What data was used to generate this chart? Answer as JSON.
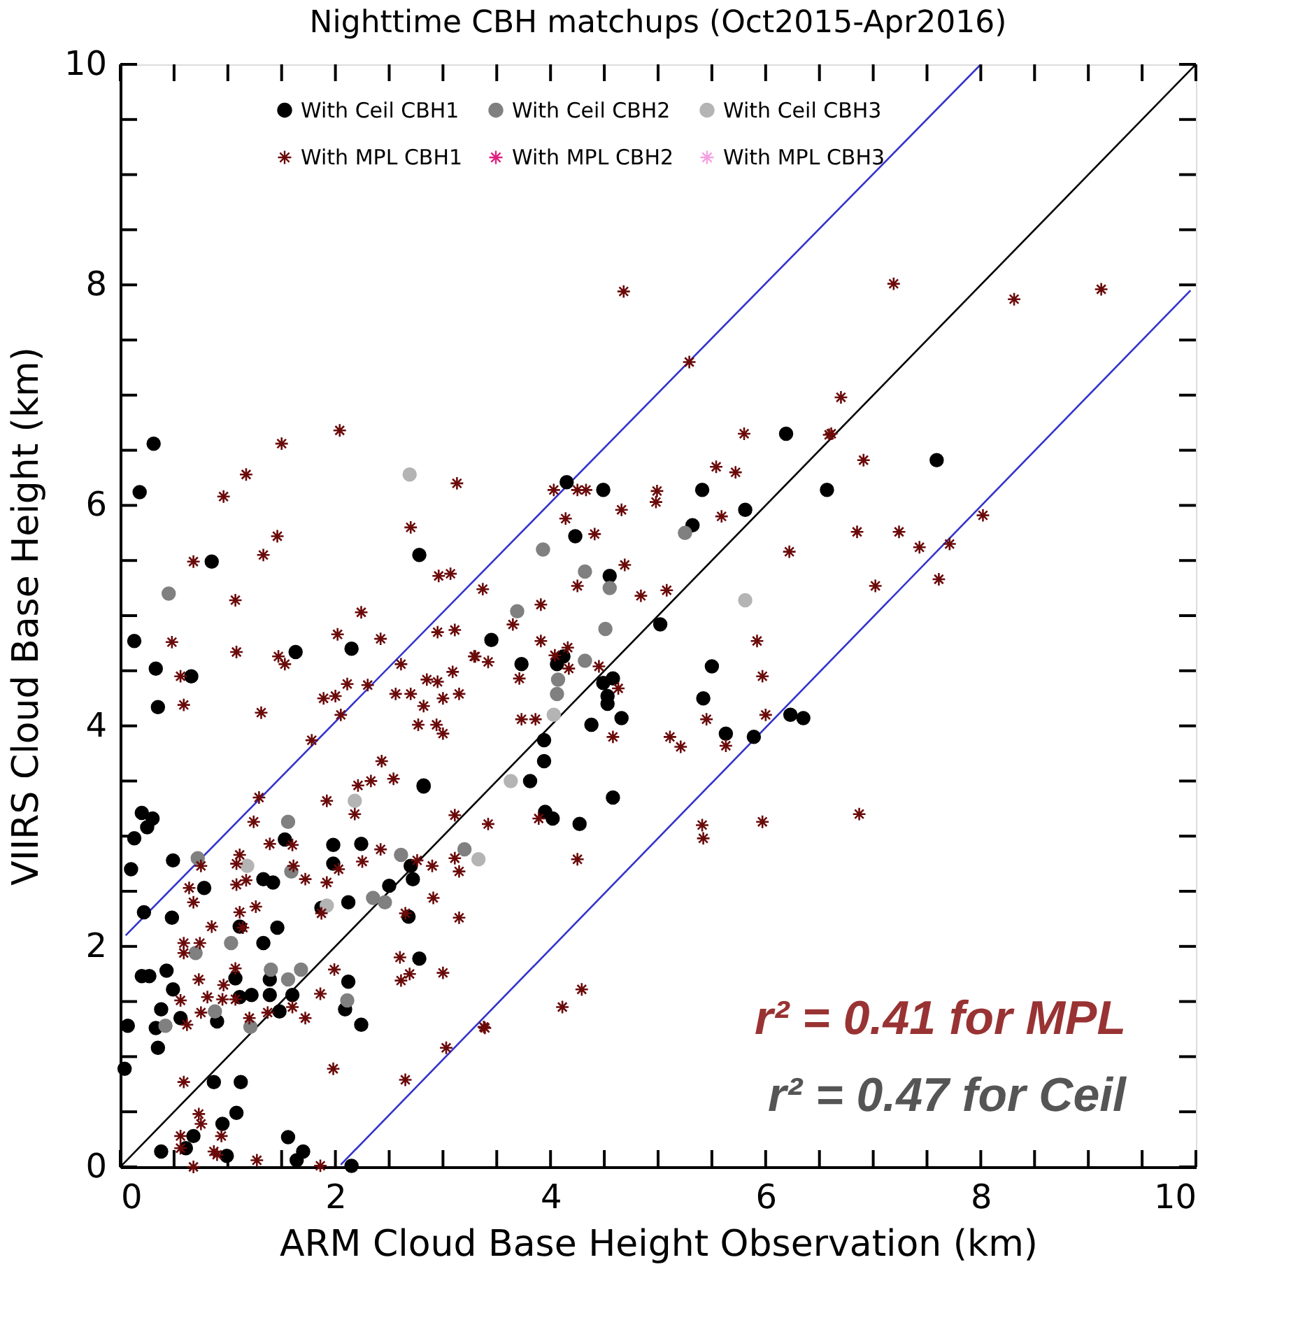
{
  "chart_data": {
    "type": "scatter",
    "title": "Nighttime CBH matchups (Oct2015-Apr2016)",
    "xlabel": "ARM Cloud Base Height Observation (km)",
    "ylabel": "VIIRS Cloud Base Height (km)",
    "xlim": [
      0,
      10
    ],
    "ylim": [
      0,
      10
    ],
    "xticks": [
      0,
      {
        "value": 0.5,
        "label": null
      },
      {
        "value": 1,
        "label": null
      },
      {
        "value": 1.5,
        "label": null
      },
      2,
      {
        "value": 2.5,
        "label": null
      },
      {
        "value": 3,
        "label": null
      },
      {
        "value": 3.5,
        "label": null
      },
      4,
      {
        "value": 4.5,
        "label": null
      },
      {
        "value": 5,
        "label": null
      },
      {
        "value": 5.5,
        "label": null
      },
      6,
      {
        "value": 6.5,
        "label": null
      },
      {
        "value": 7,
        "label": null
      },
      {
        "value": 7.5,
        "label": null
      },
      8,
      {
        "value": 8.5,
        "label": null
      },
      {
        "value": 9,
        "label": null
      },
      {
        "value": 9.5,
        "label": null
      },
      10
    ],
    "yticks": [
      0,
      {
        "value": 0.5,
        "label": null
      },
      {
        "value": 1,
        "label": null
      },
      {
        "value": 1.5,
        "label": null
      },
      2,
      {
        "value": 2.5,
        "label": null
      },
      {
        "value": 3,
        "label": null
      },
      {
        "value": 3.5,
        "label": null
      },
      4,
      {
        "value": 4.5,
        "label": null
      },
      {
        "value": 5,
        "label": null
      },
      {
        "value": 5.5,
        "label": null
      },
      6,
      {
        "value": 6.5,
        "label": null
      },
      {
        "value": 7,
        "label": null
      },
      {
        "value": 7.5,
        "label": null
      },
      8,
      {
        "value": 8.5,
        "label": null
      },
      {
        "value": 9,
        "label": null
      },
      {
        "value": 9.5,
        "label": null
      },
      10
    ],
    "legend": "top",
    "series": [
      {
        "type": "line",
        "color": "#000000",
        "x": [
          0,
          10
        ],
        "values": [
          0,
          10
        ]
      },
      {
        "type": "line",
        "color": "#3333cc",
        "x": [
          0.05,
          8
        ],
        "values": [
          2.1,
          10
        ]
      },
      {
        "type": "line",
        "color": "#3333cc",
        "x": [
          2.05,
          9.95
        ],
        "values": [
          0.02,
          7.95
        ]
      },
      {
        "name": "With Ceil CBH1",
        "type": "scatter",
        "marker": "circle",
        "color": "#000000",
        "x": [
          0.31,
          0.18,
          0.85,
          2.78,
          0.13,
          0.33,
          0.66,
          0.35,
          1.63,
          2.15,
          2.82,
          4.15,
          4.49,
          5.41,
          6.57,
          5.81,
          5.32,
          4.23,
          4.55,
          3.45,
          3.73,
          4.06,
          4.12,
          5.02,
          5.5,
          4.49,
          4.58,
          4.53,
          4.53,
          4.38,
          4.66,
          3.94,
          3.94,
          3.81,
          5.42,
          5.63,
          5.89,
          6.23,
          6.35,
          4.58,
          3.95,
          4.02,
          4.27,
          7.59,
          6.19,
          0.2,
          0.3,
          0.25,
          0.13,
          0.1,
          0.49,
          0.22,
          0.48,
          0.78,
          1.11,
          1.33,
          1.42,
          1.46,
          1.33,
          1.53,
          1.98,
          2.24,
          1.98,
          2.12,
          1.87,
          2.68,
          2.5,
          2.7,
          2.72,
          2.78,
          0.2,
          0.27,
          0.43,
          0.49,
          0.38,
          0.07,
          0.33,
          0.56,
          0.9,
          0.35,
          1.07,
          1.11,
          1.22,
          1.39,
          1.39,
          1.6,
          1.48,
          2.12,
          2.09,
          2.24,
          0.04,
          0.87,
          1.12,
          1.08,
          0.95,
          0.68,
          0.61,
          0.38,
          0.99,
          1.56,
          1.7,
          1.64,
          2.15,
          2.82
        ],
        "values": [
          6.56,
          6.12,
          5.49,
          5.55,
          4.77,
          4.52,
          4.45,
          4.17,
          4.67,
          4.7,
          3.45,
          6.21,
          6.14,
          6.14,
          6.14,
          5.96,
          5.82,
          5.72,
          5.36,
          4.78,
          4.56,
          4.56,
          4.63,
          4.92,
          4.54,
          4.39,
          4.43,
          4.27,
          4.2,
          4.01,
          4.07,
          3.87,
          3.68,
          3.5,
          4.25,
          3.93,
          3.9,
          4.1,
          4.07,
          3.35,
          3.22,
          3.16,
          3.11,
          6.41,
          6.65,
          3.21,
          3.16,
          3.08,
          2.98,
          2.7,
          2.78,
          2.31,
          2.26,
          2.53,
          2.18,
          2.61,
          2.58,
          2.17,
          2.03,
          2.97,
          2.92,
          2.93,
          2.75,
          2.4,
          2.35,
          2.27,
          2.55,
          2.73,
          2.61,
          1.89,
          1.73,
          1.73,
          1.78,
          1.61,
          1.43,
          1.28,
          1.26,
          1.35,
          1.32,
          1.08,
          1.71,
          1.54,
          1.56,
          1.7,
          1.56,
          1.56,
          1.41,
          1.68,
          1.43,
          1.29,
          0.89,
          0.77,
          0.77,
          0.49,
          0.39,
          0.28,
          0.17,
          0.14,
          0.1,
          0.27,
          0.14,
          0.06,
          0.01,
          3.46
        ]
      },
      {
        "name": "With Ceil CBH2",
        "type": "scatter",
        "marker": "circle",
        "color": "#808080",
        "x": [
          0.45,
          3.93,
          4.32,
          4.55,
          3.69,
          4.51,
          4.32,
          4.07,
          4.06,
          5.25,
          0.72,
          1.56,
          1.59,
          1.03,
          0.7,
          1.4,
          1.68,
          1.56,
          0.88,
          0.42,
          1.21,
          2.11,
          2.35,
          2.46,
          3.2,
          2.61
        ],
        "values": [
          5.2,
          5.6,
          5.4,
          5.25,
          5.04,
          4.88,
          4.59,
          4.42,
          4.29,
          5.75,
          2.8,
          3.13,
          2.68,
          2.03,
          1.94,
          1.79,
          1.79,
          1.7,
          1.41,
          1.28,
          1.27,
          1.51,
          2.44,
          2.4,
          2.88,
          2.83
        ]
      },
      {
        "name": "With Ceil CBH3",
        "type": "scatter",
        "marker": "circle",
        "color": "#b4b4b4",
        "x": [
          2.69,
          5.81,
          3.63,
          4.03,
          3.33,
          2.18,
          1.18,
          1.92
        ],
        "values": [
          6.28,
          5.14,
          3.5,
          4.1,
          2.79,
          3.32,
          2.73,
          2.37
        ]
      },
      {
        "name": "With MPL CBH1",
        "type": "scatter",
        "marker": "cross",
        "color": "#6b0a0a",
        "x": [
          2.04,
          1.5,
          1.17,
          0.96,
          3.13,
          2.7,
          1.46,
          1.33,
          0.68,
          2.96,
          3.07,
          1.07,
          2.24,
          0.48,
          2.02,
          2.42,
          2.95,
          3.11,
          1.08,
          1.47,
          1.53,
          0.56,
          0.59,
          1.31,
          2.11,
          2.3,
          1.89,
          2.0,
          2.61,
          2.05,
          2.56,
          2.7,
          2.85,
          2.95,
          3.0,
          3.15,
          2.82,
          3.09,
          2.77,
          2.94,
          3.0,
          1.78,
          2.43,
          2.21,
          2.33,
          2.54,
          3.29,
          1.29,
          1.24,
          1.39,
          1.6,
          1.11,
          1.08,
          0.75,
          0.64,
          0.68,
          1.08,
          1.17,
          1.26,
          1.11,
          1.14,
          0.85,
          0.59,
          0.59,
          0.74,
          1.61,
          1.72,
          1.92,
          2.18,
          1.92,
          2.03,
          1.87,
          2.42,
          2.25,
          2.76,
          2.9,
          2.91,
          2.65,
          3.11,
          3.11,
          3.15,
          3.15,
          0.73,
          1.07,
          0.96,
          0.81,
          0.95,
          1.07,
          0.56,
          0.75,
          0.62,
          1.37,
          1.2,
          1.6,
          1.72,
          1.86,
          1.99,
          2.6,
          2.61,
          3.0,
          1.98,
          0.59,
          0.73,
          0.75,
          0.94,
          0.56,
          0.56,
          0.87,
          0.9,
          1.27,
          0.68,
          1.86,
          2.65,
          3.03,
          5.8,
          6.59,
          5.54,
          5.72,
          4.03,
          4.25,
          4.33,
          4.99,
          4.98,
          4.66,
          4.14,
          4.41,
          5.59,
          6.22,
          3.37,
          4.69,
          4.25,
          4.84,
          5.08,
          3.91,
          3.65,
          3.3,
          3.42,
          3.91,
          4.16,
          4.04,
          4.17,
          4.45,
          3.71,
          4.63,
          3.73,
          3.86,
          4.58,
          5.11,
          5.21,
          5.45,
          5.63,
          5.92,
          5.97,
          6.0,
          3.42,
          3.89,
          4.25,
          5.41,
          5.42,
          5.97,
          4.29,
          4.11,
          3.39,
          7.19,
          8.31,
          9.12,
          6.7,
          6.61,
          6.91,
          6.85,
          7.24,
          7.43,
          7.71,
          8.02,
          7.61,
          7.02,
          6.87,
          4.68,
          5.29,
          2.69,
          3.38
        ],
        "values": [
          6.68,
          6.56,
          6.28,
          6.08,
          6.2,
          5.8,
          5.72,
          5.55,
          5.49,
          5.36,
          5.38,
          5.14,
          5.03,
          4.76,
          4.83,
          4.79,
          4.85,
          4.87,
          4.67,
          4.63,
          4.56,
          4.45,
          4.19,
          4.12,
          4.38,
          4.37,
          4.25,
          4.27,
          4.56,
          4.1,
          4.29,
          4.29,
          4.42,
          4.4,
          4.25,
          4.29,
          4.18,
          4.49,
          4.01,
          4.01,
          3.93,
          3.87,
          3.68,
          3.46,
          3.5,
          3.52,
          4.63,
          3.35,
          3.13,
          2.93,
          2.92,
          2.83,
          2.75,
          2.73,
          2.53,
          2.4,
          2.56,
          2.6,
          2.36,
          2.31,
          2.17,
          2.18,
          2.03,
          1.94,
          2.03,
          2.73,
          2.61,
          3.32,
          3.2,
          2.58,
          2.7,
          2.3,
          2.88,
          2.77,
          2.78,
          2.73,
          2.44,
          2.3,
          3.19,
          2.8,
          2.68,
          2.26,
          1.7,
          1.8,
          1.65,
          1.54,
          1.52,
          1.52,
          1.51,
          1.4,
          1.29,
          1.4,
          1.35,
          1.45,
          1.35,
          1.57,
          1.79,
          1.9,
          1.69,
          1.76,
          0.89,
          0.77,
          0.48,
          0.39,
          0.28,
          0.28,
          0.17,
          0.14,
          0.11,
          0.06,
          0.0,
          0.01,
          0.79,
          1.08,
          6.65,
          6.64,
          6.35,
          6.3,
          6.14,
          6.14,
          6.14,
          6.13,
          6.03,
          5.96,
          5.88,
          5.74,
          5.9,
          5.58,
          5.24,
          5.46,
          5.27,
          5.18,
          5.23,
          5.1,
          4.92,
          4.63,
          4.58,
          4.77,
          4.71,
          4.64,
          4.52,
          4.54,
          4.43,
          4.34,
          4.06,
          4.06,
          3.9,
          3.9,
          3.81,
          4.06,
          3.82,
          4.77,
          4.45,
          4.1,
          3.11,
          3.16,
          2.79,
          3.1,
          2.98,
          3.13,
          1.61,
          1.45,
          1.26,
          8.01,
          7.87,
          7.96,
          6.98,
          6.65,
          6.41,
          5.76,
          5.76,
          5.62,
          5.65,
          5.91,
          5.33,
          5.27,
          3.2,
          7.94,
          7.3,
          1.75,
          1.27
        ]
      },
      {
        "name": "With MPL CBH2",
        "type": "scatter",
        "marker": "cross",
        "color": "#e0207f"
      },
      {
        "name": "With MPL CBH3",
        "type": "scatter",
        "marker": "cross",
        "color": "#f5a0e0"
      }
    ],
    "annotations": [
      "r² = 0.41 for MPL",
      "r² = 0.47 for Ceil"
    ]
  }
}
